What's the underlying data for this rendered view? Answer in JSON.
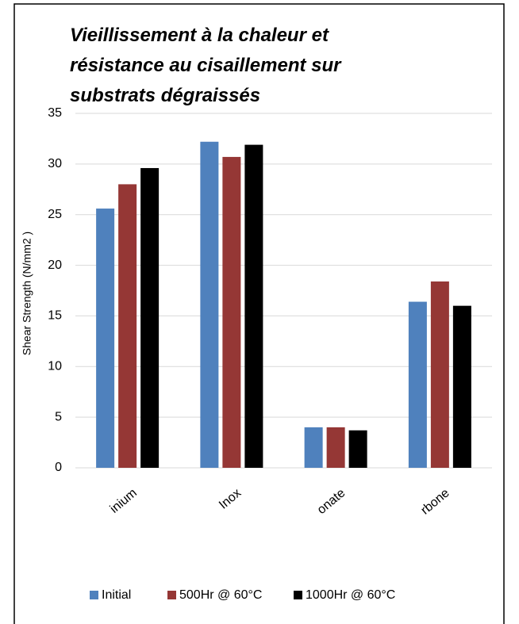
{
  "chart_data": {
    "type": "bar",
    "title": "Vieillissement à la chaleur et résistance au cisaillement sur substrats dégraissés",
    "y_label": "Shear Strength (N/mm2 )",
    "categories": [
      "inium",
      "Inox",
      "onate",
      "rbone"
    ],
    "series": [
      {
        "name": "Initial",
        "color": "#4f81bd",
        "values": [
          25.6,
          32.2,
          4.0,
          16.4
        ]
      },
      {
        "name": "500Hr @ 60°C",
        "color": "#953735",
        "values": [
          28.0,
          30.7,
          4.0,
          18.4
        ]
      },
      {
        "name": "1000Hr @ 60°C",
        "color": "#000000",
        "values": [
          29.6,
          31.9,
          3.7,
          16.0
        ]
      }
    ],
    "ylim": [
      0,
      35
    ],
    "yticks": [
      0,
      5,
      10,
      15,
      20,
      25,
      30,
      35
    ],
    "grid": true,
    "legend": "bottom"
  }
}
